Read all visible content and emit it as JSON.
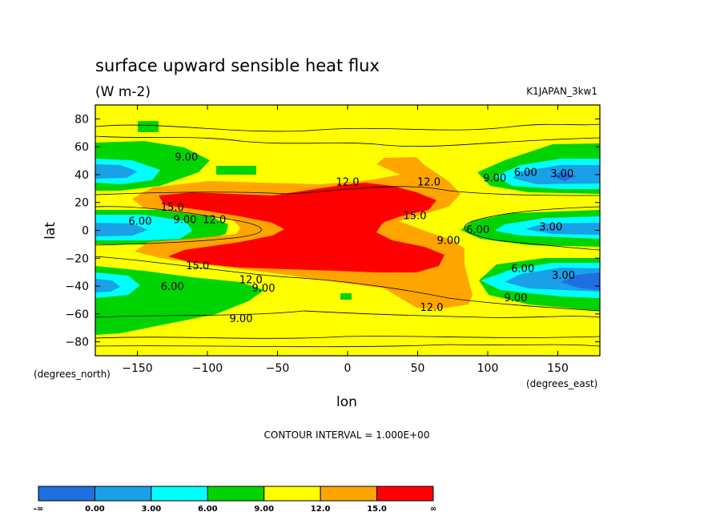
{
  "chart_data": {
    "type": "heatmap",
    "title": "surface upward sensible heat flux",
    "units": "(W m-2)",
    "dataset": "K1JAPAN_3kw1",
    "xlabel": "lon",
    "ylabel": "lat",
    "x_units": "(degrees_east)",
    "y_units": "(degrees_north)",
    "xlim": [
      -180,
      180
    ],
    "ylim": [
      -90,
      90
    ],
    "x_ticks": [
      -150,
      -100,
      -50,
      0,
      50,
      100,
      150
    ],
    "y_ticks": [
      80,
      60,
      40,
      20,
      0,
      -20,
      -40,
      -60,
      -80
    ],
    "contour_interval_text": "CONTOUR INTERVAL = 1.000E+00",
    "colorbar": {
      "levels": [
        "-∞",
        "0.00",
        "3.00",
        "6.00",
        "9.00",
        "12.0",
        "15.0",
        "∞"
      ],
      "colors": [
        "#1f6fe0",
        "#1aa0e6",
        "#00ffff",
        "#00d400",
        "#ffff00",
        "#ffa500",
        "#ff0000"
      ]
    },
    "contour_labels": [
      {
        "text": "9.00",
        "lon": -115,
        "lat": 53
      },
      {
        "text": "12.0",
        "lon": 0,
        "lat": 35
      },
      {
        "text": "12.0",
        "lon": 58,
        "lat": 35
      },
      {
        "text": "9.00",
        "lon": 105,
        "lat": 38
      },
      {
        "text": "6.00",
        "lon": 127,
        "lat": 42
      },
      {
        "text": "3.00",
        "lon": 153,
        "lat": 41
      },
      {
        "text": "15.0",
        "lon": -125,
        "lat": 17
      },
      {
        "text": "6.00",
        "lon": -148,
        "lat": 7
      },
      {
        "text": "9.00",
        "lon": -116,
        "lat": 8
      },
      {
        "text": "12.0",
        "lon": -95,
        "lat": 8
      },
      {
        "text": "15.0",
        "lon": 48,
        "lat": 11
      },
      {
        "text": "6.00",
        "lon": 93,
        "lat": 1
      },
      {
        "text": "3.00",
        "lon": 145,
        "lat": 3
      },
      {
        "text": "9.00",
        "lon": 72,
        "lat": -7
      },
      {
        "text": "15.0",
        "lon": -107,
        "lat": -25
      },
      {
        "text": "12.0",
        "lon": -69,
        "lat": -35
      },
      {
        "text": "9.00",
        "lon": -60,
        "lat": -41
      },
      {
        "text": "6.00",
        "lon": -125,
        "lat": -40
      },
      {
        "text": "6.00",
        "lon": 125,
        "lat": -27
      },
      {
        "text": "3.00",
        "lon": 154,
        "lat": -32
      },
      {
        "text": "9.00",
        "lon": 120,
        "lat": -48
      },
      {
        "text": "12.0",
        "lon": 60,
        "lat": -55
      },
      {
        "text": "9.00",
        "lon": -76,
        "lat": -63
      }
    ]
  }
}
